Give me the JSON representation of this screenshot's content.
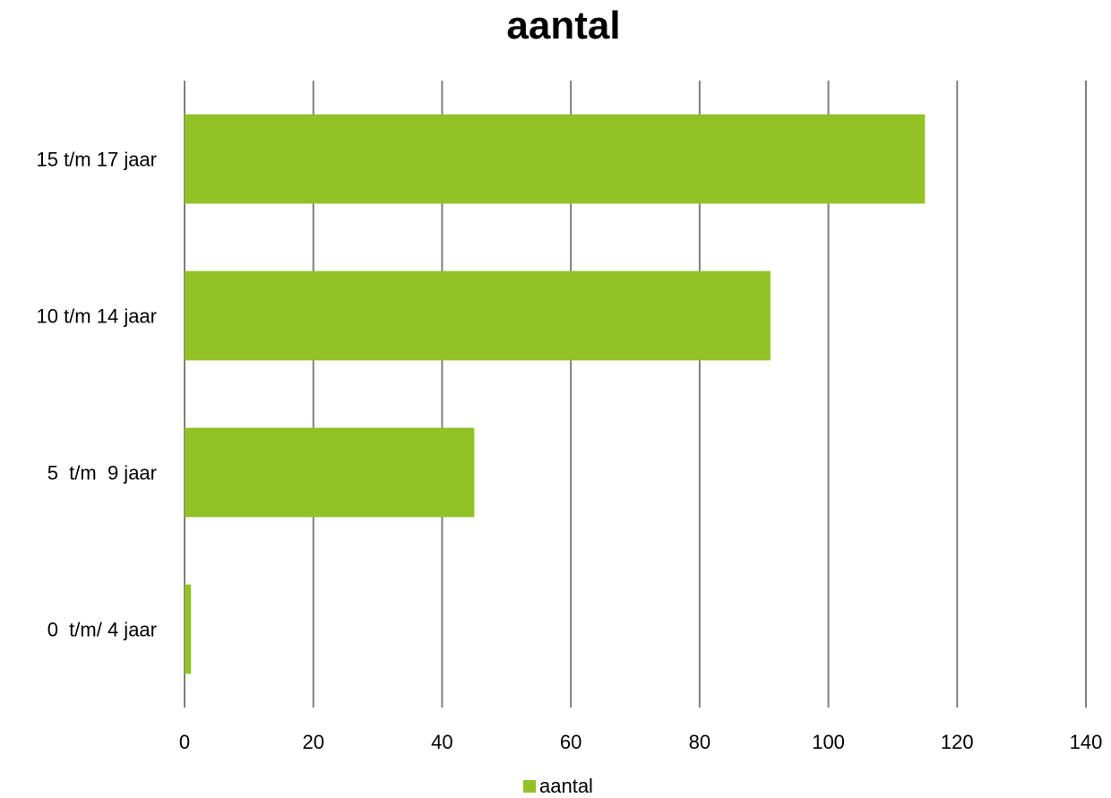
{
  "chart_data": {
    "type": "bar",
    "orientation": "horizontal",
    "title": "aantal",
    "categories": [
      "0  t/m/ 4 jaar",
      "5  t/m  9 jaar",
      "10 t/m 14 jaar",
      "15 t/m 17 jaar"
    ],
    "series": [
      {
        "name": "aantal",
        "values": [
          1,
          45,
          91,
          115
        ],
        "color": "#92c226"
      }
    ],
    "xlim": [
      0,
      140
    ],
    "x_ticks": [
      0,
      20,
      40,
      60,
      80,
      100,
      120,
      140
    ],
    "grid": true,
    "gridline_color": "#7f7f7f",
    "legend": {
      "position": "bottom",
      "label": "aantal"
    }
  }
}
